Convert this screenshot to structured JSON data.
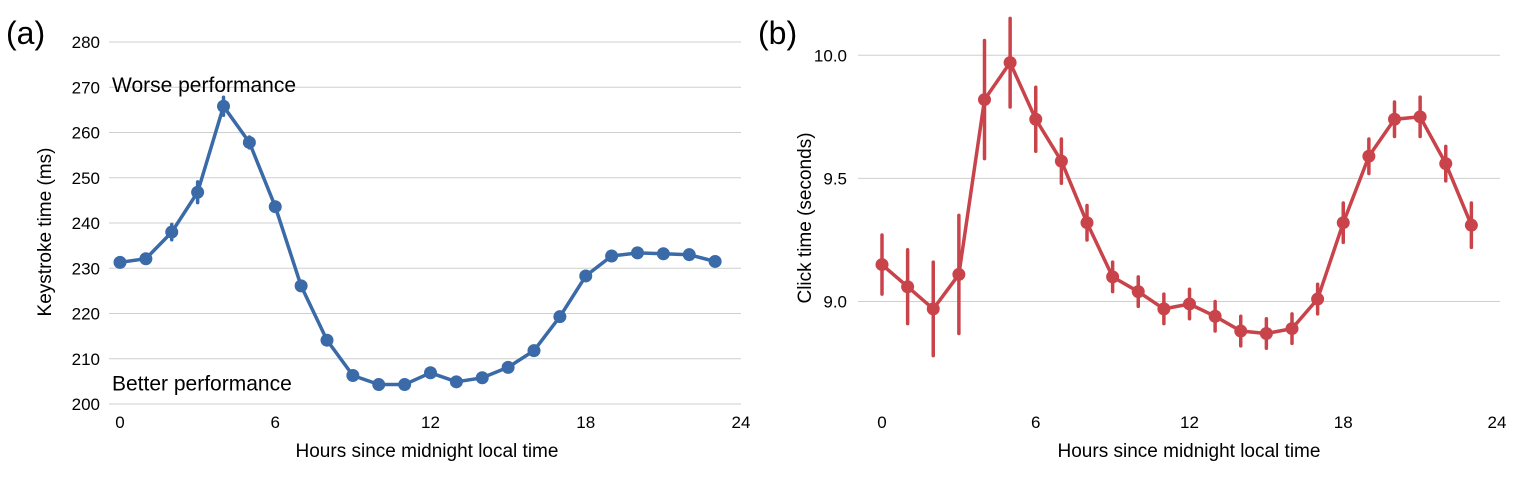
{
  "chart_data": [
    {
      "type": "line",
      "panel_label": "(a)",
      "xlabel": "Hours since midnight local time",
      "ylabel": "Keystroke time (ms)",
      "xlim": [
        0,
        24
      ],
      "ylim": [
        200,
        280
      ],
      "xticks": [
        0,
        6,
        12,
        18,
        24
      ],
      "yticks": [
        200,
        210,
        220,
        230,
        240,
        250,
        260,
        270,
        280
      ],
      "xtick_labels": [
        "0",
        "6",
        "12",
        "18",
        "24"
      ],
      "ytick_labels": [
        "200",
        "210",
        "220",
        "230",
        "240",
        "250",
        "260",
        "270",
        "280"
      ],
      "grid": true,
      "color": "#3a6aa8",
      "annotations": [
        {
          "text": "Worse performance",
          "y": 270.5
        },
        {
          "text": "Better performance",
          "y": 204.5
        }
      ],
      "series": [
        {
          "x": [
            0,
            1,
            2,
            3,
            4,
            5,
            6,
            7,
            8,
            9,
            10,
            11,
            12,
            13,
            14,
            15,
            16,
            17,
            18,
            19,
            20,
            21,
            22,
            23
          ],
          "values": [
            231.3,
            232.1,
            238.0,
            246.8,
            265.8,
            257.8,
            243.6,
            226.1,
            214.1,
            206.3,
            204.3,
            204.3,
            206.9,
            204.9,
            205.8,
            208.1,
            211.8,
            219.3,
            228.3,
            232.7,
            233.4,
            233.2,
            233.0,
            231.5
          ],
          "err": [
            0.6,
            0.7,
            1.7,
            2.3,
            2.0,
            1.2,
            0.8,
            0.6,
            0.6,
            0.5,
            0.5,
            0.5,
            0.5,
            0.5,
            0.5,
            0.5,
            0.5,
            0.5,
            0.6,
            0.5,
            0.5,
            0.5,
            0.5,
            0.5
          ]
        }
      ]
    },
    {
      "type": "line",
      "panel_label": "(b)",
      "xlabel": "Hours since midnight local time",
      "ylabel": "Click time (seconds)",
      "xlim": [
        0,
        24
      ],
      "ylim": [
        8.6,
        10.2
      ],
      "xticks": [
        0,
        6,
        12,
        18,
        24
      ],
      "yticks": [
        9.0,
        9.5,
        10.0
      ],
      "xtick_labels": [
        "0",
        "6",
        "12",
        "18",
        "24"
      ],
      "ytick_labels": [
        "9.0",
        "9.5",
        "10.0"
      ],
      "grid": true,
      "color": "#c9444a",
      "series": [
        {
          "x": [
            0,
            1,
            2,
            3,
            4,
            5,
            6,
            7,
            8,
            9,
            10,
            11,
            12,
            13,
            14,
            15,
            16,
            17,
            18,
            19,
            20,
            21,
            22,
            23
          ],
          "values": [
            9.15,
            9.06,
            8.97,
            9.11,
            9.82,
            9.97,
            9.74,
            9.57,
            9.32,
            9.1,
            9.04,
            8.97,
            8.99,
            8.94,
            8.88,
            8.87,
            8.89,
            9.01,
            9.32,
            9.59,
            9.74,
            9.75,
            9.56,
            9.31
          ],
          "err": [
            0.12,
            0.15,
            0.19,
            0.24,
            0.24,
            0.18,
            0.13,
            0.09,
            0.07,
            0.06,
            0.06,
            0.06,
            0.06,
            0.06,
            0.06,
            0.06,
            0.06,
            0.06,
            0.08,
            0.07,
            0.07,
            0.08,
            0.07,
            0.09
          ]
        }
      ]
    }
  ]
}
